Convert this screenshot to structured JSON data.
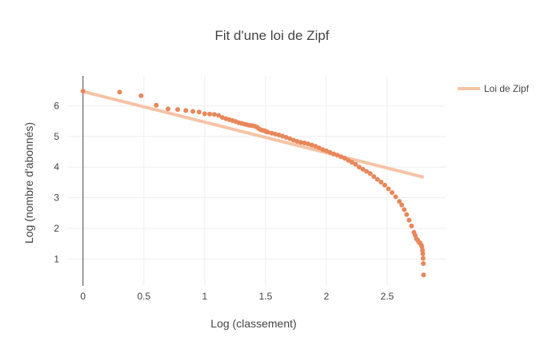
{
  "chart_data": {
    "type": "scatter",
    "title": "Fit d'une loi de Zipf",
    "xlabel": "Log (classement)",
    "ylabel": "Log (nombre d'abonnés)",
    "xlim": [
      -0.13,
      2.98
    ],
    "ylim": [
      0.12,
      6.98
    ],
    "x_ticks": [
      0,
      0.5,
      1,
      1.5,
      2,
      2.5
    ],
    "x_tick_labels": [
      "0",
      "0.5",
      "1",
      "1.5",
      "2",
      "2.5"
    ],
    "y_ticks": [
      1,
      2,
      3,
      4,
      5,
      6
    ],
    "y_tick_labels": [
      "1",
      "2",
      "3",
      "4",
      "5",
      "6"
    ],
    "grid": true,
    "legend_position": "top-right",
    "colors": {
      "points": "#e8875a",
      "fit": "#f5c4a5"
    },
    "series": [
      {
        "type": "scatter",
        "x": [
          0,
          0.301,
          0.477,
          0.602,
          0.699,
          0.778,
          0.845,
          0.903,
          0.954,
          1.0,
          1.041,
          1.079,
          1.114,
          1.146,
          1.176,
          1.204,
          1.23,
          1.255,
          1.279,
          1.301,
          1.322,
          1.342,
          1.362,
          1.38,
          1.398,
          1.415,
          1.431,
          1.447,
          1.462,
          1.477,
          1.491,
          1.505,
          1.52,
          1.55,
          1.58,
          1.61,
          1.64,
          1.67,
          1.7,
          1.73,
          1.76,
          1.79,
          1.82,
          1.85,
          1.88,
          1.91,
          1.94,
          1.97,
          2.0,
          2.03,
          2.06,
          2.09,
          2.12,
          2.15,
          2.18,
          2.21,
          2.24,
          2.27,
          2.3,
          2.33,
          2.36,
          2.39,
          2.42,
          2.45,
          2.48,
          2.51,
          2.54,
          2.57,
          2.6,
          2.62,
          2.64,
          2.66,
          2.68,
          2.7,
          2.72,
          2.73,
          2.74,
          2.75,
          2.76,
          2.77,
          2.78,
          2.785,
          2.79,
          2.793,
          2.795,
          2.797,
          2.799
        ],
        "y": [
          6.48,
          6.45,
          6.33,
          6.02,
          5.9,
          5.88,
          5.85,
          5.82,
          5.8,
          5.74,
          5.73,
          5.72,
          5.69,
          5.62,
          5.58,
          5.55,
          5.52,
          5.49,
          5.45,
          5.43,
          5.41,
          5.39,
          5.37,
          5.36,
          5.35,
          5.33,
          5.3,
          5.25,
          5.22,
          5.2,
          5.19,
          5.16,
          5.14,
          5.11,
          5.08,
          5.05,
          5.01,
          4.97,
          4.93,
          4.88,
          4.84,
          4.81,
          4.79,
          4.76,
          4.72,
          4.68,
          4.63,
          4.57,
          4.53,
          4.48,
          4.43,
          4.39,
          4.34,
          4.29,
          4.22,
          4.16,
          4.09,
          4.0,
          3.93,
          3.86,
          3.79,
          3.69,
          3.6,
          3.51,
          3.41,
          3.29,
          3.17,
          3.03,
          2.88,
          2.76,
          2.61,
          2.45,
          2.27,
          2.08,
          1.87,
          1.77,
          1.66,
          1.62,
          1.55,
          1.52,
          1.45,
          1.4,
          1.28,
          1.17,
          1.02,
          0.85,
          0.48
        ]
      },
      {
        "type": "line",
        "name": "Loi de Zipf",
        "x": [
          0,
          2.8
        ],
        "y": [
          6.47,
          3.67
        ]
      }
    ]
  }
}
